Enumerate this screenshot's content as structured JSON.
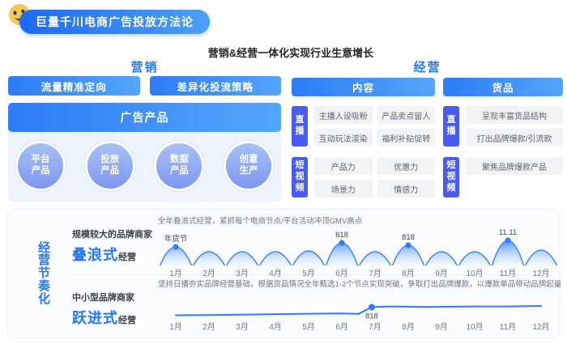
{
  "badge": {
    "title": "巨量千川电商广告投放方法论"
  },
  "subtitle": "营销&经营一体化实现行业生意增长",
  "marketing": {
    "header": "营销",
    "pills": [
      "流量精准定向",
      "差异化投流策略"
    ],
    "banner": "广告产品",
    "circles": [
      {
        "line1": "平台",
        "line2": "产品"
      },
      {
        "line1": "投放",
        "line2": "产品"
      },
      {
        "line1": "数据",
        "line2": "产品"
      },
      {
        "line1": "创意",
        "line2": "生产"
      }
    ]
  },
  "operation": {
    "header": "经营",
    "panels": [
      {
        "title": "内容",
        "groups": [
          {
            "label": "直播",
            "items": [
              "主播人设吸粉",
              "产品卖点留人",
              "互动玩法渲染",
              "福利补贴促转"
            ]
          },
          {
            "label": "短视频",
            "items": [
              "产品力",
              "优惠力",
              "场景力",
              "情感力"
            ]
          }
        ]
      },
      {
        "title": "货品",
        "groups": [
          {
            "label": "直播",
            "items": [
              "呈现丰富货品结构",
              "打出品牌爆款/引流款"
            ]
          },
          {
            "label": "短视频",
            "items": [
              "聚焦品牌爆款产品"
            ]
          }
        ]
      }
    ]
  },
  "rhythm": {
    "vertical_title": "经营节奏化",
    "rows": [
      {
        "audience": "规模较大的品牌商家",
        "mode_highlight": "叠浪式",
        "mode_suffix": "经营",
        "description": "全年叠浪式经营，紧抓每个电商节点/平台活动冲顶GMV高点"
      },
      {
        "audience": "中小型品牌商家",
        "mode_highlight": "跃进式",
        "mode_suffix": "经营",
        "description": "坚持日播夯实品牌经营基础，根据货品情况全年甄选1-2个节点实现突破，争取打出品牌爆款，以爆款单品带动品牌起量"
      }
    ]
  },
  "chart_data": [
    {
      "type": "area",
      "subtype": "scalloped-wave",
      "categories": [
        "1月",
        "2月",
        "3月",
        "4月",
        "5月",
        "6月",
        "7月",
        "8月",
        "9月",
        "10月",
        "11月",
        "12月"
      ],
      "peak_heights": [
        23,
        17,
        17,
        17,
        18,
        28,
        17,
        25,
        17,
        17,
        31,
        19
      ],
      "annotations": [
        {
          "label": "年货节",
          "month_index": 0
        },
        {
          "label": "618",
          "month_index": 5
        },
        {
          "label": "818",
          "month_index": 7
        },
        {
          "label": "11.11",
          "month_index": 10
        }
      ],
      "legend": "none",
      "grid": false
    },
    {
      "type": "line",
      "categories": [
        "1月",
        "2月",
        "3月",
        "4月",
        "5月",
        "6月",
        "7月",
        "8月",
        "9月",
        "10月",
        "11月",
        "12月"
      ],
      "points": [
        {
          "m": 0,
          "v": 16
        },
        {
          "m": 1,
          "v": 17
        },
        {
          "m": 2,
          "v": 19
        },
        {
          "m": 3,
          "v": 21
        },
        {
          "m": 4,
          "v": 23
        },
        {
          "m": 5,
          "v": 24
        },
        {
          "m": 5.5,
          "v": 22
        },
        {
          "m": 5.9,
          "v": 52
        },
        {
          "m": 6.5,
          "v": 55
        },
        {
          "m": 7.5,
          "v": 53
        },
        {
          "m": 9,
          "v": 55
        },
        {
          "m": 10,
          "v": 55
        },
        {
          "m": 11,
          "v": 57
        }
      ],
      "annotations": [
        {
          "label": "818",
          "m": 5.9
        }
      ],
      "legend": "none",
      "grid": false
    }
  ],
  "colors": {
    "primary_blue": "#2E7CF7",
    "gradient_end": "#54A6FA",
    "indigo_label": "#4A5BF0",
    "circle_top": "#A6C1F7",
    "circle_bottom": "#7F96ED",
    "panel_bg": "#EDF4FE",
    "item_bg": "#F2F3F5",
    "wave_stroke": "#3E86F7",
    "dot": "#2E7CF7"
  }
}
